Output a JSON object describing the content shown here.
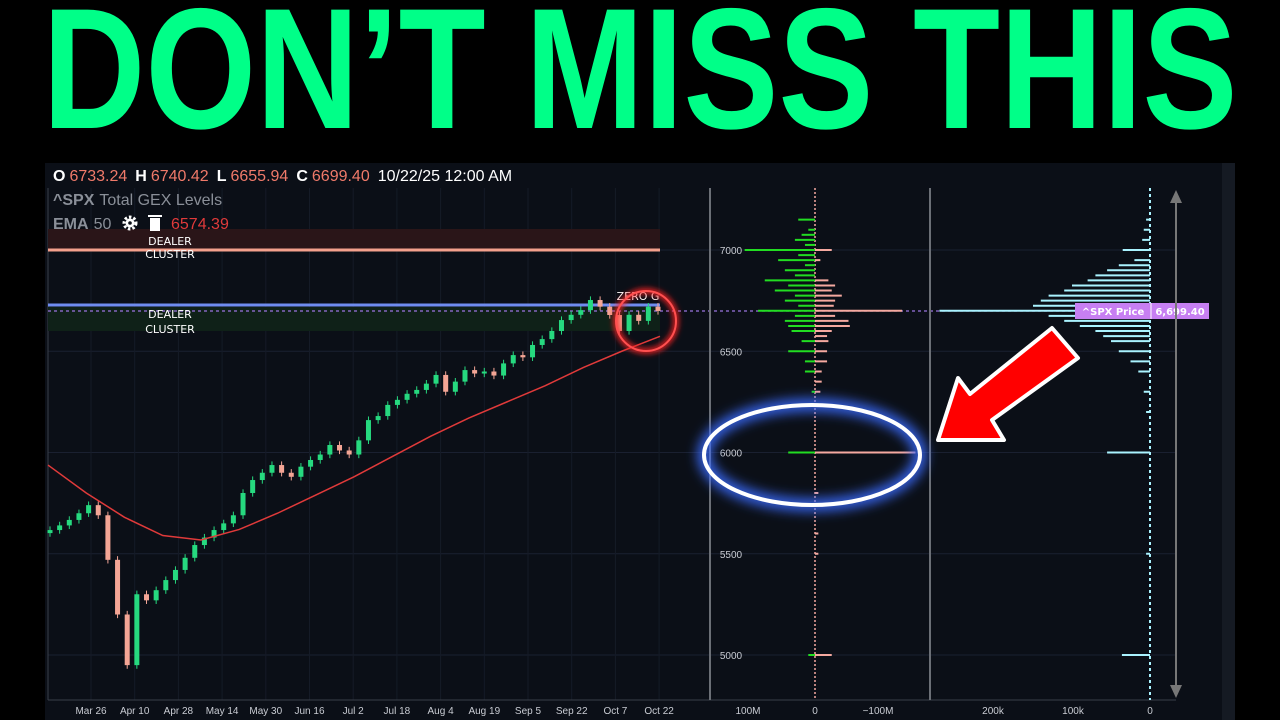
{
  "headline": "DON’T MISS THIS",
  "colors": {
    "headline": "#00ff88",
    "up": "#26d97f",
    "down": "#f4a595",
    "ema": "#e03a3a",
    "gex_pos": "#22dd22",
    "gex_neg": "#f5a9a0",
    "total_gex": "#aaf3ff",
    "price_tag": "#c77ff2",
    "annotation_arrow": "#ff0000",
    "annotation_ellipse": "#3b6cff"
  },
  "ohlc": {
    "o_label": "O",
    "o": "6733.24",
    "h_label": "H",
    "h": "6740.42",
    "l_label": "L",
    "l": "6655.94",
    "c_label": "C",
    "c": "6699.40",
    "datetime": "10/22/25 12:00 AM"
  },
  "indicator": {
    "symbol": "^SPX",
    "name": "Total GEX Levels",
    "ema_label": "EMA",
    "ema_period": "50",
    "ema_value": "6574.39",
    "icons": [
      "gear-icon",
      "trash-icon"
    ]
  },
  "annotations": {
    "dealer_cluster_top": [
      "DEALER",
      "CLUSTER"
    ],
    "dealer_cluster_bottom": [
      "DEALER",
      "CLUSTER"
    ],
    "zero_gamma": "ZERO G",
    "price_tag_label": "^SPX Price",
    "price_tag_value": "6,699.40"
  },
  "chart_data": [
    {
      "type": "candlestick",
      "title": "^SPX Total GEX Levels",
      "x_ticks": [
        "Mar 26",
        "Apr 10",
        "Apr 28",
        "May 14",
        "May 30",
        "Jun 16",
        "Jul 2",
        "Jul 18",
        "Aug 4",
        "Aug 19",
        "Sep 5",
        "Sep 22",
        "Oct 7",
        "Oct 22"
      ],
      "ylim": [
        4800,
        7150
      ],
      "closes": [
        5617,
        5640,
        5667,
        5700,
        5740,
        5690,
        5470,
        5200,
        4950,
        5300,
        5270,
        5320,
        5370,
        5420,
        5480,
        5543,
        5580,
        5617,
        5650,
        5690,
        5800,
        5864,
        5900,
        5938,
        5900,
        5880,
        5930,
        5963,
        5990,
        6037,
        6010,
        5990,
        6060,
        6160,
        6180,
        6235,
        6260,
        6290,
        6309,
        6340,
        6383,
        6300,
        6350,
        6407,
        6390,
        6400,
        6380,
        6440,
        6481,
        6470,
        6531,
        6560,
        6600,
        6654,
        6680,
        6703,
        6753,
        6720,
        6679,
        6600,
        6680,
        6650,
        6720,
        6699
      ],
      "ema50": [
        5938,
        5800,
        5680,
        5590,
        5568,
        5620,
        5700,
        5790,
        5880,
        5980,
        6080,
        6170,
        6250,
        6330,
        6420,
        6500,
        6574
      ],
      "levels": {
        "dealer_cluster_top": 7000,
        "zero_gamma": 6730,
        "price": 6699.4
      }
    },
    {
      "type": "bar",
      "orientation": "horizontal",
      "y_ticks": [
        "7000",
        "6500",
        "6000",
        "5500",
        "5000"
      ],
      "x_ticks": [
        "100M",
        "0",
        "−100M"
      ],
      "positive_gex_M": [
        [
          7150,
          25
        ],
        [
          7100,
          10
        ],
        [
          7075,
          20
        ],
        [
          7050,
          30
        ],
        [
          7025,
          15
        ],
        [
          7000,
          105
        ],
        [
          6975,
          25
        ],
        [
          6950,
          55
        ],
        [
          6925,
          15
        ],
        [
          6900,
          45
        ],
        [
          6875,
          30
        ],
        [
          6850,
          75
        ],
        [
          6825,
          40
        ],
        [
          6800,
          60
        ],
        [
          6775,
          30
        ],
        [
          6750,
          45
        ],
        [
          6725,
          25
        ],
        [
          6700,
          85
        ],
        [
          6675,
          30
        ],
        [
          6650,
          45
        ],
        [
          6625,
          40
        ],
        [
          6600,
          35
        ],
        [
          6550,
          20
        ],
        [
          6500,
          40
        ],
        [
          6450,
          15
        ],
        [
          6400,
          15
        ],
        [
          6300,
          5
        ],
        [
          6000,
          40
        ],
        [
          5000,
          10
        ]
      ],
      "negative_gex_M": [
        [
          7000,
          -25
        ],
        [
          6950,
          -8
        ],
        [
          6850,
          -20
        ],
        [
          6825,
          -30
        ],
        [
          6800,
          -25
        ],
        [
          6775,
          -40
        ],
        [
          6750,
          -30
        ],
        [
          6725,
          -28
        ],
        [
          6700,
          -130
        ],
        [
          6675,
          -30
        ],
        [
          6650,
          -50
        ],
        [
          6625,
          -52
        ],
        [
          6600,
          -25
        ],
        [
          6575,
          -18
        ],
        [
          6550,
          -20
        ],
        [
          6500,
          -18
        ],
        [
          6450,
          -18
        ],
        [
          6400,
          -10
        ],
        [
          6350,
          -10
        ],
        [
          6300,
          -8
        ],
        [
          6000,
          -150
        ],
        [
          5800,
          -5
        ],
        [
          5600,
          -5
        ],
        [
          5500,
          -5
        ],
        [
          5000,
          -25
        ]
      ]
    },
    {
      "type": "bar",
      "orientation": "horizontal",
      "x_ticks": [
        "200k",
        "100k",
        "0"
      ],
      "total_gex_k": [
        [
          7150,
          5
        ],
        [
          7100,
          8
        ],
        [
          7050,
          10
        ],
        [
          7000,
          35
        ],
        [
          6950,
          20
        ],
        [
          6925,
          40
        ],
        [
          6900,
          55
        ],
        [
          6875,
          70
        ],
        [
          6850,
          80
        ],
        [
          6825,
          100
        ],
        [
          6800,
          110
        ],
        [
          6775,
          130
        ],
        [
          6750,
          140
        ],
        [
          6725,
          150
        ],
        [
          6700,
          270
        ],
        [
          6675,
          130
        ],
        [
          6650,
          110
        ],
        [
          6625,
          90
        ],
        [
          6600,
          70
        ],
        [
          6575,
          60
        ],
        [
          6550,
          50
        ],
        [
          6500,
          40
        ],
        [
          6450,
          25
        ],
        [
          6400,
          15
        ],
        [
          6300,
          8
        ],
        [
          6200,
          5
        ],
        [
          6000,
          55
        ],
        [
          5500,
          5
        ],
        [
          5000,
          36
        ]
      ]
    }
  ]
}
